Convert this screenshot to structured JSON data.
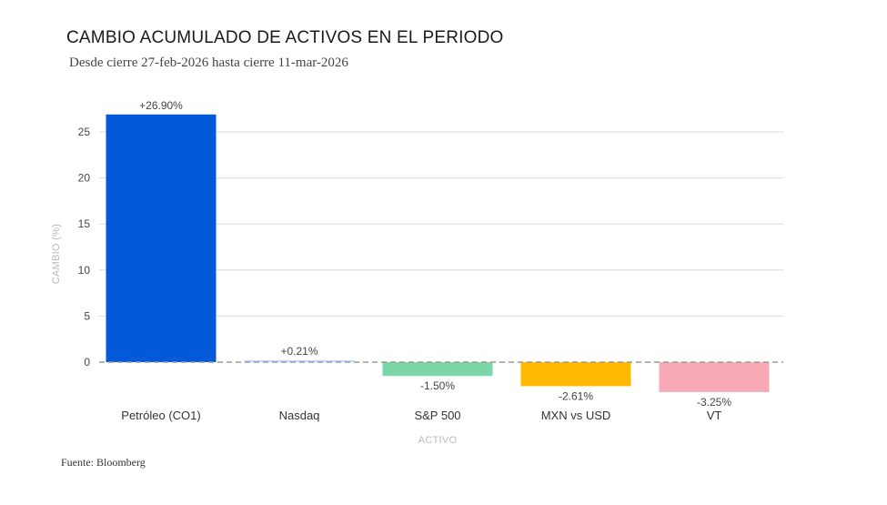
{
  "chart_data": {
    "type": "bar",
    "title": "CAMBIO ACUMULADO DE ACTIVOS EN EL PERIODO",
    "subtitle": "Desde cierre 27-feb-2026 hasta cierre 11-mar-2026",
    "source": "Fuente: Bloomberg",
    "xlabel": "ACTIVO",
    "ylabel": "CAMBIO (%)",
    "categories": [
      "Petróleo (CO1)",
      "Nasdaq",
      "S&P 500",
      "MXN vs USD",
      "VT"
    ],
    "values": [
      26.9,
      0.21,
      -1.5,
      -2.61,
      -3.25
    ],
    "data_labels": [
      "+26.90%",
      "+0.21%",
      "-1.50%",
      "-2.61%",
      "-3.25%"
    ],
    "colors": [
      "#0359d8",
      "#c2d4f7",
      "#7bd6a8",
      "#ffba00",
      "#f7aab6"
    ],
    "ylim": [
      -3.25,
      27
    ],
    "yticks": [
      0,
      5,
      10,
      15,
      20,
      25
    ],
    "grid": true
  }
}
